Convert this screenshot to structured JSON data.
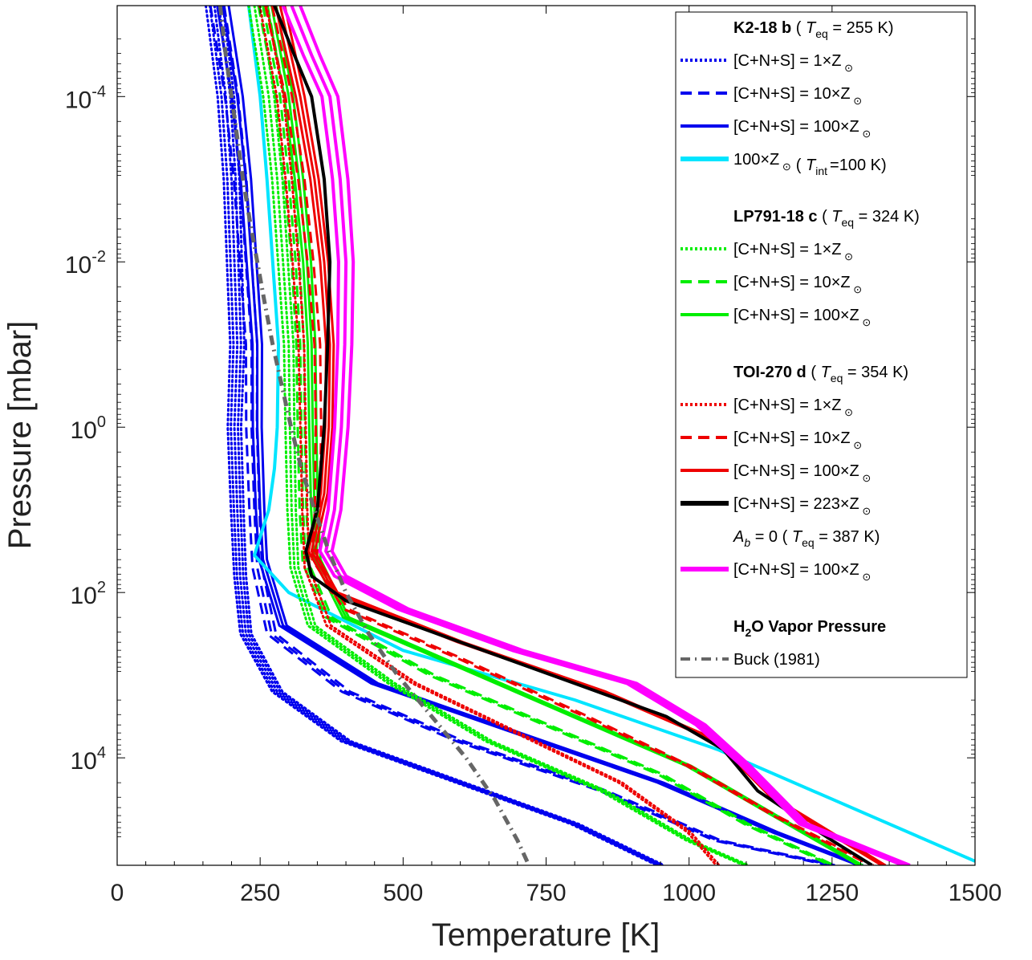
{
  "chart_data": {
    "type": "line",
    "xlabel": "Temperature [K]",
    "ylabel": "Pressure [mbar]",
    "xlim": [
      0,
      1500
    ],
    "ylim_log10": [
      -5.1,
      5.3
    ],
    "y_scale": "log",
    "y_direction": "reversed",
    "x_ticks": [
      0,
      250,
      500,
      750,
      1000,
      1250,
      1500
    ],
    "y_ticks": [
      {
        "base": "10",
        "exp": "-4",
        "log10": -4
      },
      {
        "base": "10",
        "exp": "-2",
        "log10": -2
      },
      {
        "base": "10",
        "exp": "0",
        "log10": 0
      },
      {
        "base": "10",
        "exp": "2",
        "log10": 2
      },
      {
        "base": "10",
        "exp": "4",
        "log10": 4
      }
    ],
    "legend_position": "top-right",
    "groups": [
      {
        "planet": "K2-18 b",
        "teq_prefix": "( ",
        "teq_symbol": "T",
        "teq_sub": "eq",
        "teq_value": " = 255 K)",
        "entries": [
          {
            "label": "[C+N+S] = 1×Z",
            "color": "#0000ee",
            "style": "dotted"
          },
          {
            "label": "[C+N+S] = 10×Z",
            "color": "#0000ee",
            "style": "dashed"
          },
          {
            "label": "[C+N+S] = 100×Z",
            "color": "#0000ee",
            "style": "solid"
          },
          {
            "label": "100×Z",
            "color": "#00e5ff",
            "style": "solid-thick",
            "suffix": "( T",
            "suffix_sub": "int",
            "suffix_tail": "=100 K)"
          }
        ]
      },
      {
        "planet": "LP791-18 c",
        "teq_prefix": "( ",
        "teq_symbol": "T",
        "teq_sub": "eq",
        "teq_value": " = 324 K)",
        "entries": [
          {
            "label": "[C+N+S] = 1×Z",
            "color": "#00ee00",
            "style": "dotted"
          },
          {
            "label": "[C+N+S] = 10×Z",
            "color": "#00ee00",
            "style": "dashed"
          },
          {
            "label": "[C+N+S] = 100×Z",
            "color": "#00ee00",
            "style": "solid"
          }
        ]
      },
      {
        "planet": "TOI-270 d",
        "teq_prefix": "( ",
        "teq_symbol": "T",
        "teq_sub": "eq",
        "teq_value": " = 354 K)",
        "entries": [
          {
            "label": "[C+N+S] = 1×Z",
            "color": "#ee0000",
            "style": "dotted"
          },
          {
            "label": "[C+N+S] = 10×Z",
            "color": "#ee0000",
            "style": "dashed"
          },
          {
            "label": "[C+N+S] = 100×Z",
            "color": "#ee0000",
            "style": "solid"
          },
          {
            "label": "[C+N+S] = 223×Z",
            "color": "#000000",
            "style": "solid-thick"
          }
        ],
        "sub_header": {
          "symbol": "A",
          "sub": "b",
          "text": " = 0 ( ",
          "teq_symbol": "T",
          "teq_sub": "eq",
          "teq_value": " = 387 K)"
        },
        "sub_entries": [
          {
            "label": "[C+N+S] = 100×Z",
            "color": "#ff00ff",
            "style": "solid-thick"
          }
        ]
      },
      {
        "planet": "H",
        "planet_sub": "2",
        "planet_tail": "O Vapor Pressure",
        "entries": [
          {
            "label": "Buck (1981)",
            "color": "#666666",
            "style": "dashdot"
          }
        ]
      }
    ],
    "sun_symbol": "⊙",
    "series": [
      {
        "name": "K2-18b 1xZ",
        "color": "#0000ee",
        "style": "dotted",
        "width": 3,
        "points": [
          [
            170,
            -5.1
          ],
          [
            190,
            -4
          ],
          [
            200,
            -3
          ],
          [
            205,
            -2
          ],
          [
            210,
            -1
          ],
          [
            205,
            0
          ],
          [
            210,
            1
          ],
          [
            215,
            1.8
          ],
          [
            225,
            2.5
          ],
          [
            280,
            3.2
          ],
          [
            400,
            3.8
          ],
          [
            600,
            4.3
          ],
          [
            800,
            4.8
          ],
          [
            950,
            5.3
          ]
        ],
        "jitter": [
          -15,
          -8,
          0,
          8,
          15
        ]
      },
      {
        "name": "K2-18b 10xZ",
        "color": "#0000ee",
        "style": "dashed",
        "width": 3,
        "points": [
          [
            175,
            -5.1
          ],
          [
            200,
            -4
          ],
          [
            215,
            -3
          ],
          [
            225,
            -2
          ],
          [
            235,
            -1
          ],
          [
            235,
            0
          ],
          [
            240,
            1
          ],
          [
            245,
            1.7
          ],
          [
            270,
            2.5
          ],
          [
            400,
            3.2
          ],
          [
            600,
            3.8
          ],
          [
            850,
            4.4
          ],
          [
            1050,
            5
          ],
          [
            1250,
            5.3
          ]
        ],
        "jitter": [
          -12,
          0,
          12
        ]
      },
      {
        "name": "K2-18b 100xZ",
        "color": "#0000ee",
        "style": "solid",
        "width": 3,
        "points": [
          [
            185,
            -5.1
          ],
          [
            210,
            -4
          ],
          [
            225,
            -3
          ],
          [
            235,
            -2
          ],
          [
            245,
            -1
          ],
          [
            245,
            0
          ],
          [
            250,
            1
          ],
          [
            255,
            1.6
          ],
          [
            290,
            2.4
          ],
          [
            450,
            3.1
          ],
          [
            700,
            3.7
          ],
          [
            950,
            4.3
          ],
          [
            1150,
            4.9
          ],
          [
            1300,
            5.3
          ]
        ],
        "jitter": [
          -10,
          0,
          10
        ]
      },
      {
        "name": "K2-18b 100xZ Tint=100K",
        "color": "#00e5ff",
        "style": "solid",
        "width": 4,
        "points": [
          [
            230,
            -5.1
          ],
          [
            250,
            -4
          ],
          [
            262,
            -3
          ],
          [
            272,
            -2
          ],
          [
            282,
            -1
          ],
          [
            280,
            0
          ],
          [
            275,
            0.5
          ],
          [
            265,
            1
          ],
          [
            240,
            1.55
          ],
          [
            300,
            2
          ],
          [
            500,
            2.7
          ],
          [
            800,
            3.3
          ],
          [
            1050,
            3.9
          ],
          [
            1250,
            4.5
          ],
          [
            1500,
            5.25
          ]
        ],
        "jitter": [
          0
        ]
      },
      {
        "name": "LP791-18c 1xZ",
        "color": "#00ee00",
        "style": "dotted",
        "width": 3,
        "points": [
          [
            240,
            -5.1
          ],
          [
            265,
            -4
          ],
          [
            280,
            -3
          ],
          [
            290,
            -2
          ],
          [
            300,
            -1
          ],
          [
            302,
            0
          ],
          [
            305,
            1
          ],
          [
            310,
            1.7
          ],
          [
            340,
            2.4
          ],
          [
            480,
            3.1
          ],
          [
            650,
            3.8
          ],
          [
            850,
            4.4
          ],
          [
            1000,
            5
          ],
          [
            1100,
            5.3
          ]
        ],
        "jitter": [
          -10,
          0,
          10
        ]
      },
      {
        "name": "LP791-18c 10xZ",
        "color": "#00ee00",
        "style": "dashed",
        "width": 3,
        "points": [
          [
            255,
            -5.1
          ],
          [
            285,
            -4
          ],
          [
            300,
            -3
          ],
          [
            312,
            -2
          ],
          [
            320,
            -1
          ],
          [
            322,
            0
          ],
          [
            325,
            1
          ],
          [
            330,
            1.65
          ],
          [
            370,
            2.3
          ],
          [
            550,
            3
          ],
          [
            750,
            3.6
          ],
          [
            950,
            4.2
          ],
          [
            1100,
            4.8
          ],
          [
            1250,
            5.3
          ]
        ],
        "jitter": [
          -8,
          0,
          8
        ]
      },
      {
        "name": "LP791-18c 100xZ",
        "color": "#00ee00",
        "style": "solid",
        "width": 3,
        "points": [
          [
            270,
            -5.1
          ],
          [
            300,
            -4
          ],
          [
            318,
            -3
          ],
          [
            332,
            -2
          ],
          [
            340,
            -1
          ],
          [
            342,
            0
          ],
          [
            345,
            1
          ],
          [
            350,
            1.6
          ],
          [
            400,
            2.3
          ],
          [
            600,
            2.9
          ],
          [
            800,
            3.5
          ],
          [
            1000,
            4.1
          ],
          [
            1150,
            4.7
          ],
          [
            1300,
            5.3
          ]
        ],
        "jitter": [
          -8,
          0,
          8
        ]
      },
      {
        "name": "TOI-270d 1xZ",
        "color": "#ee0000",
        "style": "dotted",
        "width": 3,
        "points": [
          [
            255,
            -5.1
          ],
          [
            285,
            -4
          ],
          [
            300,
            -3
          ],
          [
            312,
            -2
          ],
          [
            322,
            -1
          ],
          [
            325,
            0
          ],
          [
            328,
            1
          ],
          [
            332,
            1.7
          ],
          [
            370,
            2.4
          ],
          [
            520,
            3.1
          ],
          [
            700,
            3.7
          ],
          [
            880,
            4.3
          ],
          [
            1000,
            4.9
          ],
          [
            1050,
            5.3
          ]
        ],
        "jitter": [
          -6,
          6
        ]
      },
      {
        "name": "TOI-270d 10xZ",
        "color": "#ee0000",
        "style": "dashed",
        "width": 3,
        "points": [
          [
            265,
            -5.1
          ],
          [
            300,
            -4
          ],
          [
            322,
            -3
          ],
          [
            338,
            -2
          ],
          [
            350,
            -1
          ],
          [
            352,
            0
          ],
          [
            350,
            1
          ],
          [
            345,
            1.6
          ],
          [
            400,
            2.2
          ],
          [
            600,
            2.8
          ],
          [
            820,
            3.5
          ],
          [
            1000,
            4.1
          ],
          [
            1150,
            4.7
          ],
          [
            1320,
            5.3
          ]
        ],
        "jitter": [
          -6,
          6
        ]
      },
      {
        "name": "TOI-270d 100xZ",
        "color": "#ee0000",
        "style": "solid",
        "width": 3,
        "points": [
          [
            285,
            -5.1
          ],
          [
            320,
            -4
          ],
          [
            345,
            -3
          ],
          [
            362,
            -2
          ],
          [
            372,
            -1
          ],
          [
            370,
            0
          ],
          [
            362,
            0.8
          ],
          [
            340,
            1.5
          ],
          [
            380,
            2
          ],
          [
            600,
            2.6
          ],
          [
            850,
            3.2
          ],
          [
            1050,
            3.8
          ],
          [
            1150,
            4.5
          ],
          [
            1340,
            5.3
          ]
        ],
        "jitter": [
          -8,
          0,
          8
        ]
      },
      {
        "name": "TOI-270d 223xZ",
        "color": "#000000",
        "style": "solid",
        "width": 4,
        "points": [
          [
            275,
            -5.1
          ],
          [
            310,
            -4.5
          ],
          [
            340,
            -4
          ],
          [
            362,
            -3
          ],
          [
            372,
            -2
          ],
          [
            368,
            -1
          ],
          [
            362,
            0
          ],
          [
            350,
            1
          ],
          [
            330,
            1.5
          ],
          [
            340,
            1.8
          ],
          [
            400,
            2.1
          ],
          [
            600,
            2.6
          ],
          [
            800,
            3.1
          ],
          [
            960,
            3.5
          ],
          [
            1060,
            3.9
          ],
          [
            1120,
            4.4
          ],
          [
            1250,
            5
          ],
          [
            1320,
            5.3
          ]
        ],
        "jitter": [
          0
        ]
      },
      {
        "name": "TOI-270d Ab=0 100xZ",
        "color": "#ff00ff",
        "style": "solid",
        "width": 4,
        "points": [
          [
            305,
            -5.1
          ],
          [
            340,
            -4.5
          ],
          [
            372,
            -4
          ],
          [
            390,
            -3
          ],
          [
            400,
            -2
          ],
          [
            398,
            -1
          ],
          [
            392,
            0
          ],
          [
            380,
            1
          ],
          [
            365,
            1.5
          ],
          [
            390,
            1.8
          ],
          [
            500,
            2.2
          ],
          [
            700,
            2.7
          ],
          [
            900,
            3.1
          ],
          [
            1020,
            3.6
          ],
          [
            1100,
            4.1
          ],
          [
            1200,
            4.8
          ],
          [
            1380,
            5.3
          ]
        ],
        "jitter": [
          -15,
          0,
          15
        ]
      },
      {
        "name": "Buck (1981)",
        "color": "#666666",
        "style": "dashdot",
        "width": 5,
        "points": [
          [
            180,
            -5.1
          ],
          [
            190,
            -4.5
          ],
          [
            200,
            -4
          ],
          [
            210,
            -3.5
          ],
          [
            220,
            -3
          ],
          [
            232,
            -2.5
          ],
          [
            245,
            -2
          ],
          [
            258,
            -1.5
          ],
          [
            272,
            -1
          ],
          [
            288,
            -0.5
          ],
          [
            304,
            0
          ],
          [
            322,
            0.5
          ],
          [
            345,
            1
          ],
          [
            370,
            1.5
          ],
          [
            400,
            2
          ],
          [
            440,
            2.5
          ],
          [
            490,
            3
          ],
          [
            550,
            3.5
          ],
          [
            610,
            4
          ],
          [
            660,
            4.5
          ],
          [
            700,
            5
          ],
          [
            720,
            5.3
          ]
        ],
        "jitter": [
          0
        ]
      }
    ]
  }
}
